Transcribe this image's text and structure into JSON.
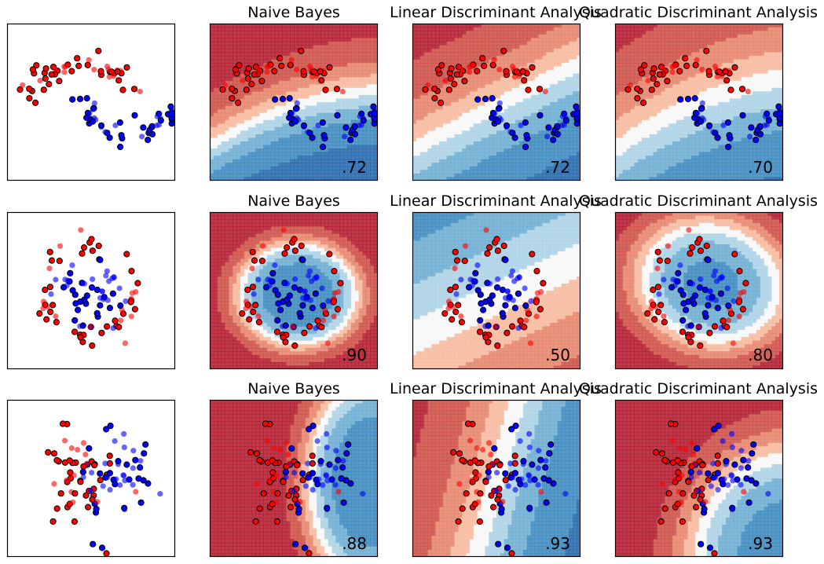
{
  "figure": {
    "rows": 3,
    "cols": 4,
    "colors": {
      "class_a_point": "#ff0000",
      "class_b_point": "#0000ff",
      "cmap_low": "#b2182b",
      "cmap_mid": "#f7f7f7",
      "cmap_high": "#2166ac"
    }
  },
  "chart_data": [
    {
      "row": 0,
      "col": 0,
      "type": "scatter",
      "title": "",
      "score": "",
      "boundary": null
    },
    {
      "row": 0,
      "col": 1,
      "type": "scatter",
      "title": "Naive Bayes",
      "score": ".72",
      "boundary": "naive_bayes"
    },
    {
      "row": 0,
      "col": 2,
      "type": "scatter",
      "title": "Linear Discriminant Analysis",
      "score": ".72",
      "boundary": "lda"
    },
    {
      "row": 0,
      "col": 3,
      "type": "scatter",
      "title": "Quadratic Discriminant Analysis",
      "score": ".70",
      "boundary": "qda"
    },
    {
      "row": 1,
      "col": 0,
      "type": "scatter",
      "title": "",
      "score": "",
      "boundary": null
    },
    {
      "row": 1,
      "col": 1,
      "type": "scatter",
      "title": "Naive Bayes",
      "score": ".90",
      "boundary": "naive_bayes"
    },
    {
      "row": 1,
      "col": 2,
      "type": "scatter",
      "title": "Linear Discriminant Analysis",
      "score": ".50",
      "boundary": "lda"
    },
    {
      "row": 1,
      "col": 3,
      "type": "scatter",
      "title": "Quadratic Discriminant Analysis",
      "score": ".80",
      "boundary": "qda"
    },
    {
      "row": 2,
      "col": 0,
      "type": "scatter",
      "title": "",
      "score": "",
      "boundary": null
    },
    {
      "row": 2,
      "col": 1,
      "type": "scatter",
      "title": "Naive Bayes",
      "score": ".88",
      "boundary": "naive_bayes"
    },
    {
      "row": 2,
      "col": 2,
      "type": "scatter",
      "title": "Linear Discriminant Analysis",
      "score": ".93",
      "boundary": "lda"
    },
    {
      "row": 2,
      "col": 3,
      "type": "scatter",
      "title": "Quadratic Discriminant Analysis",
      "score": ".93",
      "boundary": "qda"
    }
  ]
}
